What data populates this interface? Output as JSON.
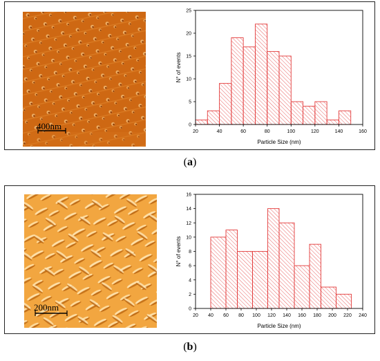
{
  "panels": [
    {
      "id": "a",
      "caption": {
        "open": "(",
        "letter": "a",
        "close": ")"
      },
      "image": {
        "scale_label": "400nm",
        "colors": [
          "#c8620f",
          "#e88a2a",
          "#f4b060"
        ]
      }
    },
    {
      "id": "b",
      "caption": {
        "open": "(",
        "letter": "b",
        "close": ")"
      },
      "image": {
        "scale_label": "200nm",
        "colors": [
          "#e8902a",
          "#f7b14a",
          "#ffd27a"
        ]
      }
    }
  ],
  "chart_data": [
    {
      "type": "bar",
      "title": "",
      "xlabel": "Particle Size (nm)",
      "ylabel": "N° of events",
      "bin_edges": [
        20,
        30,
        40,
        50,
        60,
        70,
        80,
        90,
        100,
        110,
        120,
        130,
        140,
        150
      ],
      "values": [
        1,
        3,
        9,
        19,
        17,
        22,
        16,
        15,
        5,
        4,
        5,
        1,
        3
      ],
      "xlim": [
        20,
        160
      ],
      "ylim": [
        0,
        25
      ],
      "xticks": [
        20,
        40,
        60,
        80,
        100,
        120,
        140,
        160
      ],
      "yticks": [
        0,
        5,
        10,
        15,
        20,
        25
      ],
      "bar_color": "#e33b3b",
      "fill": "hatched"
    },
    {
      "type": "bar",
      "title": "",
      "xlabel": "Particle Size (nm)",
      "ylabel": "N° of events",
      "bin_edges": [
        40,
        60,
        75,
        95,
        115,
        130,
        150,
        170,
        185,
        205,
        225
      ],
      "values": [
        10,
        11,
        8,
        8,
        14,
        12,
        6,
        9,
        3,
        2
      ],
      "xlim": [
        20,
        240
      ],
      "ylim": [
        0,
        16
      ],
      "xticks": [
        20,
        40,
        60,
        80,
        100,
        120,
        140,
        160,
        180,
        200,
        220,
        240
      ],
      "yticks": [
        0,
        2,
        4,
        6,
        8,
        10,
        12,
        14,
        16
      ],
      "bar_color": "#e33b3b",
      "fill": "hatched"
    }
  ]
}
